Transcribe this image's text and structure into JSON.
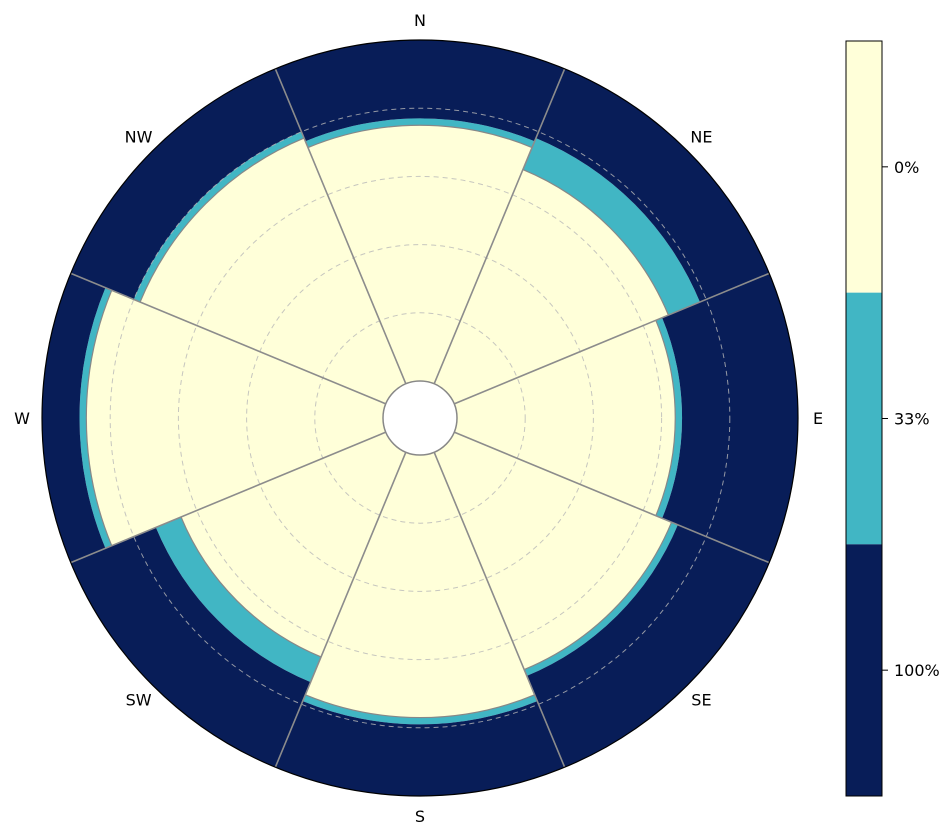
{
  "chart_data": {
    "type": "polar-stacked-bar",
    "directions": [
      "N",
      "NE",
      "E",
      "SE",
      "S",
      "SW",
      "W",
      "NW"
    ],
    "rlim": [
      0,
      100
    ],
    "rticks": [
      20,
      40,
      60,
      80,
      100
    ],
    "grid": true,
    "series": [
      {
        "name": "0%",
        "color": "#ffffd9",
        "values": [
          75,
          68,
          64,
          69,
          77,
          65,
          87,
          78
        ]
      },
      {
        "name": "33%",
        "color": "#41b6c4",
        "values": [
          2,
          10,
          2,
          2,
          2,
          8,
          2,
          2
        ]
      },
      {
        "name": "100%",
        "color": "#081d58",
        "values": [
          23,
          22,
          34,
          29,
          21,
          27,
          11,
          20
        ]
      }
    ],
    "colorbar": {
      "labels": [
        "0%",
        "33%",
        "100%"
      ],
      "colors": [
        "#ffffd9",
        "#41b6c4",
        "#081d58"
      ],
      "placement": "right"
    }
  }
}
